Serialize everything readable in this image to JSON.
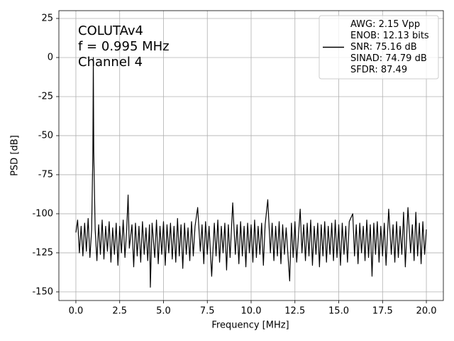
{
  "chart_data": {
    "type": "line",
    "xlabel": "Frequency [MHz]",
    "ylabel": "PSD [dB]",
    "annotations": [
      "COLUTAv4",
      "f = 0.995 MHz",
      "Channel 4"
    ],
    "xlim": [
      -0.97,
      20.97
    ],
    "ylim": [
      -155.5,
      30
    ],
    "xticks": [
      {
        "value": 0,
        "label": "0.0"
      },
      2.5,
      {
        "value": 5,
        "label": "5.0"
      },
      7.5,
      {
        "value": 10,
        "label": "10.0"
      },
      12.5,
      {
        "value": 15,
        "label": "15.0"
      },
      17.5,
      {
        "value": 20,
        "label": "20.0"
      }
    ],
    "yticks": [
      25,
      0,
      -25,
      -50,
      -75,
      -100,
      -125,
      -150
    ],
    "grid": true,
    "legend": "upper right",
    "x": [
      0,
      0.1,
      0.2,
      0.3,
      0.4,
      0.5,
      0.6,
      0.7,
      0.8,
      0.9,
      0.97,
      0.995,
      1.02,
      1.1,
      1.2,
      1.3,
      1.4,
      1.5,
      1.6,
      1.7,
      1.8,
      1.9,
      2.0,
      2.1,
      2.2,
      2.3,
      2.4,
      2.5,
      2.6,
      2.7,
      2.8,
      2.9,
      2.98,
      3.05,
      3.2,
      3.3,
      3.4,
      3.5,
      3.6,
      3.7,
      3.8,
      3.9,
      4.0,
      4.1,
      4.2,
      4.25,
      4.35,
      4.5,
      4.6,
      4.7,
      4.8,
      4.9,
      5.0,
      5.1,
      5.2,
      5.3,
      5.4,
      5.5,
      5.6,
      5.7,
      5.8,
      5.9,
      6.0,
      6.1,
      6.2,
      6.3,
      6.4,
      6.5,
      6.6,
      6.7,
      6.8,
      6.95,
      7.1,
      7.2,
      7.3,
      7.4,
      7.5,
      7.6,
      7.75,
      7.9,
      8.0,
      8.1,
      8.2,
      8.3,
      8.4,
      8.5,
      8.6,
      8.7,
      8.8,
      8.95,
      9.1,
      9.2,
      9.3,
      9.4,
      9.5,
      9.6,
      9.7,
      9.8,
      9.9,
      10.0,
      10.1,
      10.2,
      10.3,
      10.4,
      10.5,
      10.6,
      10.7,
      10.8,
      10.95,
      11.1,
      11.2,
      11.3,
      11.4,
      11.5,
      11.6,
      11.7,
      11.8,
      11.9,
      12.0,
      12.2,
      12.3,
      12.4,
      12.5,
      12.6,
      12.8,
      12.9,
      13.0,
      13.1,
      13.2,
      13.3,
      13.4,
      13.5,
      13.6,
      13.7,
      13.8,
      13.9,
      14.0,
      14.1,
      14.2,
      14.3,
      14.4,
      14.5,
      14.6,
      14.7,
      14.8,
      14.9,
      15.0,
      15.1,
      15.2,
      15.3,
      15.4,
      15.5,
      15.6,
      15.8,
      15.9,
      16.0,
      16.1,
      16.2,
      16.3,
      16.4,
      16.5,
      16.6,
      16.7,
      16.8,
      16.9,
      17.0,
      17.1,
      17.2,
      17.3,
      17.4,
      17.5,
      17.6,
      17.7,
      17.85,
      18.0,
      18.1,
      18.2,
      18.3,
      18.4,
      18.5,
      18.6,
      18.7,
      18.8,
      18.95,
      19.1,
      19.2,
      19.3,
      19.4,
      19.5,
      19.6,
      19.7,
      19.8,
      19.9,
      20.0
    ],
    "series": [
      {
        "name": [
          "AWG: 2.15 Vpp",
          "ENOB: 12.13 bits",
          "SNR: 75.16 dB",
          "SINAD: 74.79 dB",
          "SFDR: 87.49"
        ],
        "color": "#000000",
        "values": [
          -112,
          -104,
          -125,
          -108,
          -127,
          -106,
          -124,
          -103,
          -128,
          -110,
          -60,
          0,
          -60,
          -110,
          -130,
          -107,
          -126,
          -104,
          -129,
          -108,
          -124,
          -105,
          -131,
          -109,
          -126,
          -106,
          -133,
          -108,
          -125,
          -104,
          -128,
          -110,
          -88,
          -122,
          -107,
          -134,
          -106,
          -127,
          -108,
          -131,
          -105,
          -126,
          -109,
          -130,
          -107,
          -147,
          -106,
          -128,
          -104,
          -132,
          -108,
          -126,
          -105,
          -133,
          -107,
          -125,
          -106,
          -129,
          -108,
          -131,
          -103,
          -127,
          -107,
          -135,
          -106,
          -126,
          -109,
          -130,
          -105,
          -127,
          -108,
          -96,
          -124,
          -107,
          -132,
          -105,
          -126,
          -108,
          -140,
          -106,
          -127,
          -104,
          -131,
          -108,
          -125,
          -106,
          -136,
          -107,
          -128,
          -93,
          -126,
          -107,
          -132,
          -105,
          -127,
          -108,
          -134,
          -106,
          -125,
          -107,
          -131,
          -104,
          -128,
          -108,
          -126,
          -106,
          -133,
          -107,
          -91,
          -125,
          -106,
          -130,
          -108,
          -127,
          -105,
          -132,
          -107,
          -126,
          -109,
          -143,
          -106,
          -128,
          -105,
          -131,
          -97,
          -125,
          -107,
          -130,
          -106,
          -127,
          -104,
          -133,
          -108,
          -126,
          -106,
          -134,
          -107,
          -127,
          -105,
          -131,
          -108,
          -126,
          -106,
          -130,
          -104,
          -128,
          -107,
          -133,
          -106,
          -126,
          -108,
          -131,
          -105,
          -100,
          -127,
          -107,
          -132,
          -106,
          -125,
          -108,
          -130,
          -104,
          -128,
          -107,
          -140,
          -106,
          -126,
          -105,
          -131,
          -108,
          -127,
          -106,
          -133,
          -97,
          -126,
          -107,
          -131,
          -105,
          -128,
          -108,
          -126,
          -99,
          -134,
          -96,
          -125,
          -107,
          -130,
          -99,
          -127,
          -106,
          -132,
          -105,
          -126,
          -110
        ]
      }
    ]
  }
}
